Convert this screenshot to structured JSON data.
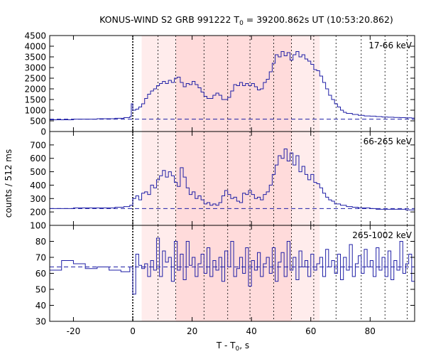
{
  "chart_data": {
    "type": "line",
    "title_prefix": "KONUS-WIND S2 GRB 991222 T",
    "title_sub": "0",
    "title_suffix": " = 39200.862s UT (10:53:20.862)",
    "xlabel_prefix": "T - T",
    "xlabel_sub": "0",
    "xlabel_suffix": ", s",
    "ylabel": "counts / 512 ms",
    "xlim": [
      -28,
      95
    ],
    "x_ticks": [
      -20,
      0,
      20,
      40,
      60,
      80
    ],
    "x_tick_labels": [
      "-20",
      "0",
      "20",
      "40",
      "60",
      "80"
    ],
    "series_color": "#1f1fa6",
    "background_color": "#ff6666",
    "shaded_regions": [
      {
        "from": 3.0,
        "to": 63.0,
        "opacity": 0.12
      },
      {
        "from": 14.5,
        "to": 53.5,
        "opacity": 0.12
      }
    ],
    "dotted_lines": [
      0,
      8.5,
      14.5,
      24.0,
      32.0,
      39.5,
      47.5,
      53.5,
      61.0,
      68.5,
      77.0,
      85.0,
      92.5
    ],
    "bold_dotted_line": 0,
    "panels": [
      {
        "label": "17-66 keV",
        "ylim": [
          0,
          4500
        ],
        "y_ticks": [
          0,
          500,
          1000,
          1500,
          2000,
          2500,
          3000,
          3500,
          4000,
          4500
        ],
        "y_tick_labels": [
          "0",
          "500",
          "1000",
          "1500",
          "2000",
          "2500",
          "3000",
          "3500",
          "4000",
          "4500"
        ],
        "background_level": 580,
        "x": [
          -28,
          -20,
          -12,
          -6,
          -3,
          -1,
          -0.5,
          0,
          1,
          2,
          3,
          4,
          5,
          6,
          7,
          8,
          9,
          10,
          11,
          12,
          13,
          14,
          15,
          16,
          17,
          18,
          19,
          20,
          21,
          22,
          23,
          24,
          25,
          26,
          27,
          28,
          29,
          30,
          31,
          32,
          33,
          34,
          35,
          36,
          37,
          38,
          39,
          40,
          41,
          42,
          43,
          44,
          45,
          46,
          47,
          48,
          49,
          50,
          51,
          52,
          53,
          54,
          55,
          56,
          57,
          58,
          59,
          60,
          61,
          62,
          63,
          64,
          65,
          66,
          67,
          68,
          69,
          70,
          71,
          72,
          74,
          76,
          78,
          80,
          82,
          84,
          86,
          88,
          90,
          92,
          94,
          95
        ],
        "values": [
          550,
          580,
          600,
          620,
          650,
          700,
          1300,
          1000,
          1050,
          1150,
          1300,
          1550,
          1750,
          1900,
          2000,
          2150,
          2250,
          2350,
          2250,
          2400,
          2300,
          2500,
          2550,
          2300,
          2100,
          2250,
          2200,
          2350,
          2200,
          2050,
          1850,
          1650,
          1550,
          1550,
          1700,
          1800,
          1700,
          1500,
          1500,
          1600,
          1900,
          2200,
          2150,
          2300,
          2150,
          2250,
          2150,
          2250,
          2100,
          1950,
          2000,
          2300,
          2450,
          2800,
          3200,
          3600,
          3500,
          3750,
          3550,
          3700,
          3350,
          3600,
          3750,
          3500,
          3600,
          3400,
          3300,
          3150,
          2900,
          2850,
          2600,
          2300,
          2000,
          1700,
          1500,
          1300,
          1150,
          1000,
          900,
          850,
          800,
          760,
          730,
          720,
          700,
          680,
          670,
          660,
          650,
          640,
          630,
          620
        ]
      },
      {
        "label": "66-265 keV",
        "ylim": [
          100,
          800
        ],
        "y_ticks": [
          100,
          200,
          300,
          400,
          500,
          600,
          700
        ],
        "y_tick_labels": [
          "100",
          "200",
          "300",
          "400",
          "500",
          "600",
          "700"
        ],
        "background_level": 225,
        "x": [
          -28,
          -20,
          -12,
          -6,
          -3,
          -1,
          0,
          1,
          2,
          3,
          4,
          5,
          6,
          7,
          8,
          9,
          10,
          11,
          12,
          13,
          14,
          15,
          16,
          17,
          18,
          19,
          20,
          21,
          22,
          23,
          24,
          25,
          26,
          27,
          28,
          29,
          30,
          31,
          32,
          33,
          34,
          35,
          36,
          37,
          38,
          39,
          40,
          41,
          42,
          43,
          44,
          45,
          46,
          47,
          48,
          49,
          50,
          51,
          52,
          53,
          54,
          55,
          56,
          57,
          58,
          59,
          60,
          61,
          62,
          63,
          64,
          65,
          66,
          67,
          68,
          70,
          72,
          74,
          76,
          78,
          80,
          82,
          84,
          86,
          88,
          90,
          92,
          94,
          95
        ],
        "values": [
          225,
          230,
          230,
          235,
          240,
          250,
          300,
          320,
          290,
          340,
          350,
          330,
          400,
          380,
          440,
          470,
          510,
          460,
          500,
          470,
          420,
          390,
          530,
          460,
          380,
          330,
          350,
          300,
          320,
          290,
          260,
          270,
          250,
          260,
          250,
          270,
          320,
          360,
          330,
          300,
          310,
          280,
          270,
          340,
          330,
          360,
          330,
          300,
          310,
          290,
          330,
          350,
          400,
          480,
          550,
          620,
          600,
          670,
          580,
          640,
          550,
          620,
          500,
          540,
          480,
          440,
          480,
          420,
          410,
          380,
          340,
          310,
          290,
          280,
          260,
          250,
          240,
          235,
          230,
          230,
          225,
          220,
          220,
          220,
          220,
          220,
          215,
          215,
          215
        ]
      },
      {
        "label": "265-1002 keV",
        "ylim": [
          30,
          90
        ],
        "y_ticks": [
          30,
          40,
          50,
          60,
          70,
          80
        ],
        "y_tick_labels": [
          "30",
          "40",
          "50",
          "60",
          "70",
          "80"
        ],
        "background_level": 64,
        "x": [
          -28,
          -24,
          -20,
          -16,
          -12,
          -8,
          -4,
          -1,
          0,
          1,
          2,
          3,
          4,
          5,
          6,
          7,
          8,
          9,
          10,
          11,
          12,
          13,
          14,
          15,
          16,
          17,
          18,
          19,
          20,
          21,
          22,
          23,
          24,
          25,
          26,
          27,
          28,
          29,
          30,
          31,
          32,
          33,
          34,
          35,
          36,
          37,
          38,
          39,
          40,
          41,
          42,
          43,
          44,
          45,
          46,
          47,
          48,
          49,
          50,
          51,
          52,
          53,
          54,
          55,
          56,
          57,
          58,
          59,
          60,
          61,
          62,
          63,
          64,
          65,
          66,
          67,
          68,
          69,
          70,
          71,
          72,
          73,
          74,
          75,
          76,
          77,
          78,
          79,
          80,
          81,
          82,
          83,
          84,
          85,
          86,
          87,
          88,
          89,
          90,
          91,
          92,
          93,
          94,
          95
        ],
        "values": [
          62,
          68,
          66,
          63,
          64,
          62,
          61,
          64,
          47,
          72,
          65,
          63,
          66,
          58,
          68,
          62,
          82,
          58,
          74,
          67,
          70,
          55,
          80,
          62,
          72,
          56,
          80,
          65,
          70,
          58,
          66,
          72,
          60,
          76,
          58,
          68,
          62,
          70,
          55,
          74,
          64,
          80,
          58,
          63,
          70,
          60,
          76,
          52,
          68,
          62,
          73,
          58,
          66,
          70,
          60,
          76,
          55,
          67,
          73,
          58,
          80,
          62,
          70,
          56,
          74,
          64,
          68,
          58,
          72,
          62,
          66,
          70,
          58,
          75,
          64,
          68,
          60,
          72,
          56,
          70,
          62,
          78,
          58,
          66,
          71,
          60,
          75,
          64,
          68,
          58,
          76,
          62,
          70,
          58,
          74,
          56,
          68,
          62,
          80,
          60,
          66,
          72,
          55,
          70
        ]
      }
    ]
  }
}
